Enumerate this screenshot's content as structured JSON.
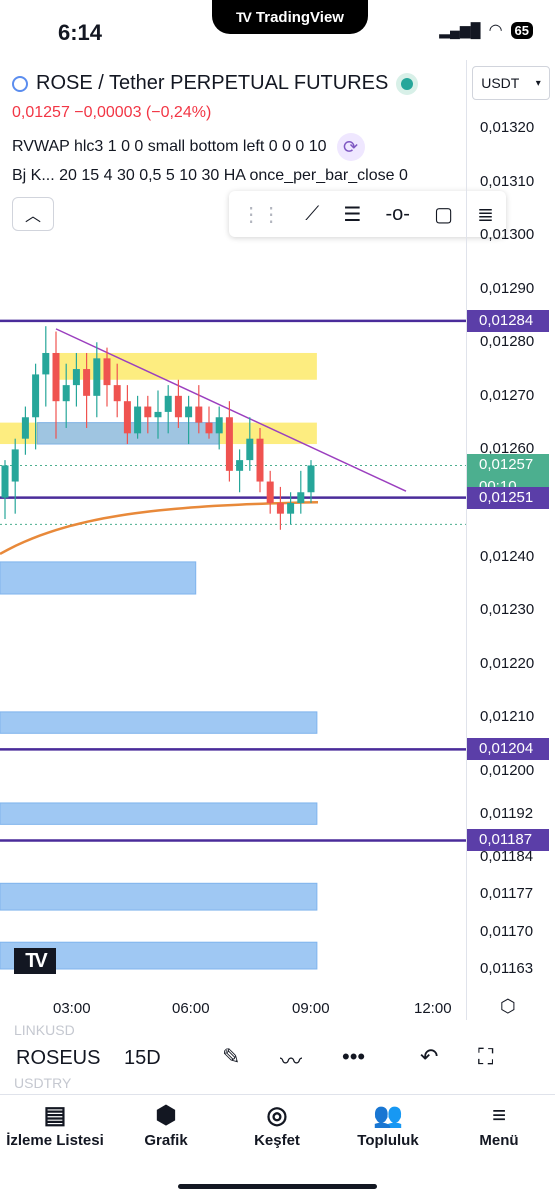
{
  "status_bar": {
    "time": "6:14",
    "app_name": "TradingView",
    "battery": "65"
  },
  "header": {
    "title": "ROSE / Tether PERPETUAL FUTURES",
    "price_change": "0,01257  −0,00003 (−0,24%)",
    "indicator_1": "RVWAP hlc3 1 0 0 small bottom left 0 0 0 10",
    "indicator_2": "Bj K...  20 15 4 30 0,5 5 10 30 HA once_per_bar_close 0"
  },
  "price_axis": {
    "currency": "USDT",
    "ticks": [
      "0,01320",
      "0,01310",
      "0,01300",
      "0,01290",
      "0,01280",
      "0,01270",
      "0,01260",
      "0,01240",
      "0,01230",
      "0,01220",
      "0,01210",
      "0,01200",
      "0,01192",
      "0,01184",
      "0,01177",
      "0,01170",
      "0,01163"
    ],
    "labels": [
      {
        "value": "0,01284",
        "color": "#5b3ea8"
      },
      {
        "value": "0,01257",
        "sub": "00:10",
        "color": "#4caf8f"
      },
      {
        "value": "0,01251",
        "color": "#5b3ea8"
      },
      {
        "value": "0,01204",
        "color": "#5b3ea8"
      },
      {
        "value": "0,01187",
        "color": "#5b3ea8"
      }
    ]
  },
  "time_axis": {
    "ticks": [
      "03:00",
      "06:00",
      "09:00",
      "12:00"
    ]
  },
  "toolbar": {
    "symbol": "ROSEUS",
    "interval": "15D",
    "ghost_above": "LINKUSD",
    "ghost_below": "USDTRY"
  },
  "tabs": [
    {
      "label": "İzleme Listesi",
      "icon": "watchlist-icon"
    },
    {
      "label": "Grafik",
      "icon": "chart-icon"
    },
    {
      "label": "Keşfet",
      "icon": "compass-icon"
    },
    {
      "label": "Topluluk",
      "icon": "community-icon"
    },
    {
      "label": "Menü",
      "icon": "menu-icon"
    }
  ],
  "chart_data": {
    "type": "candlestick",
    "candles": [
      {
        "o": 0.01251,
        "h": 0.01258,
        "l": 0.01247,
        "c": 0.01257
      },
      {
        "o": 0.01254,
        "h": 0.01262,
        "l": 0.01248,
        "c": 0.0126
      },
      {
        "o": 0.01262,
        "h": 0.01268,
        "l": 0.01259,
        "c": 0.01266
      },
      {
        "o": 0.01266,
        "h": 0.01276,
        "l": 0.0126,
        "c": 0.01274
      },
      {
        "o": 0.01274,
        "h": 0.01283,
        "l": 0.01268,
        "c": 0.01278
      },
      {
        "o": 0.01278,
        "h": 0.01282,
        "l": 0.01262,
        "c": 0.01269
      },
      {
        "o": 0.01269,
        "h": 0.01276,
        "l": 0.01264,
        "c": 0.01272
      },
      {
        "o": 0.01272,
        "h": 0.01278,
        "l": 0.01268,
        "c": 0.01275
      },
      {
        "o": 0.01275,
        "h": 0.01278,
        "l": 0.01264,
        "c": 0.0127
      },
      {
        "o": 0.0127,
        "h": 0.0128,
        "l": 0.01266,
        "c": 0.01277
      },
      {
        "o": 0.01277,
        "h": 0.01279,
        "l": 0.01268,
        "c": 0.01272
      },
      {
        "o": 0.01272,
        "h": 0.01276,
        "l": 0.01266,
        "c": 0.01269
      },
      {
        "o": 0.01269,
        "h": 0.01272,
        "l": 0.01261,
        "c": 0.01263
      },
      {
        "o": 0.01263,
        "h": 0.0127,
        "l": 0.01262,
        "c": 0.01268
      },
      {
        "o": 0.01268,
        "h": 0.0127,
        "l": 0.01263,
        "c": 0.01266
      },
      {
        "o": 0.01266,
        "h": 0.01271,
        "l": 0.01262,
        "c": 0.01267
      },
      {
        "o": 0.01267,
        "h": 0.01272,
        "l": 0.01263,
        "c": 0.0127
      },
      {
        "o": 0.0127,
        "h": 0.01273,
        "l": 0.01264,
        "c": 0.01266
      },
      {
        "o": 0.01266,
        "h": 0.0127,
        "l": 0.01261,
        "c": 0.01268
      },
      {
        "o": 0.01268,
        "h": 0.01272,
        "l": 0.01263,
        "c": 0.01265
      },
      {
        "o": 0.01265,
        "h": 0.01268,
        "l": 0.01262,
        "c": 0.01263
      },
      {
        "o": 0.01263,
        "h": 0.01268,
        "l": 0.0126,
        "c": 0.01266
      },
      {
        "o": 0.01266,
        "h": 0.01269,
        "l": 0.01254,
        "c": 0.01256
      },
      {
        "o": 0.01256,
        "h": 0.0126,
        "l": 0.01252,
        "c": 0.01258
      },
      {
        "o": 0.01258,
        "h": 0.01266,
        "l": 0.01256,
        "c": 0.01262
      },
      {
        "o": 0.01262,
        "h": 0.01264,
        "l": 0.01252,
        "c": 0.01254
      },
      {
        "o": 0.01254,
        "h": 0.01256,
        "l": 0.01248,
        "c": 0.0125
      },
      {
        "o": 0.0125,
        "h": 0.01253,
        "l": 0.01245,
        "c": 0.01248
      },
      {
        "o": 0.01248,
        "h": 0.01252,
        "l": 0.01246,
        "c": 0.0125
      },
      {
        "o": 0.0125,
        "h": 0.01256,
        "l": 0.01248,
        "c": 0.01252
      },
      {
        "o": 0.01252,
        "h": 0.01258,
        "l": 0.0125,
        "c": 0.01257
      }
    ],
    "horizontal_lines": [
      0.01284,
      0.01251,
      0.01204,
      0.01187
    ],
    "zones": [
      {
        "from": 0.01273,
        "to": 0.01278,
        "color": "#fdea6a",
        "x0": 0.12,
        "x1": 0.68
      },
      {
        "from": 0.01261,
        "to": 0.01265,
        "color": "#fdea6a",
        "x0": 0.0,
        "x1": 0.68
      },
      {
        "from": 0.01261,
        "to": 0.01265,
        "color": "#8fbff2",
        "x0": 0.08,
        "x1": 0.47
      },
      {
        "from": 0.01233,
        "to": 0.01239,
        "color": "#8fbff2",
        "x0": 0.0,
        "x1": 0.42
      },
      {
        "from": 0.01207,
        "to": 0.01211,
        "color": "#8fbff2",
        "x0": 0.0,
        "x1": 0.68
      },
      {
        "from": 0.0119,
        "to": 0.01194,
        "color": "#8fbff2",
        "x0": 0.0,
        "x1": 0.68
      },
      {
        "from": 0.01174,
        "to": 0.01179,
        "color": "#8fbff2",
        "x0": 0.0,
        "x1": 0.68
      },
      {
        "from": 0.01163,
        "to": 0.01168,
        "color": "#8fbff2",
        "x0": 0.0,
        "x1": 0.68
      }
    ],
    "ylim": [
      0.01158,
      0.01328
    ]
  }
}
